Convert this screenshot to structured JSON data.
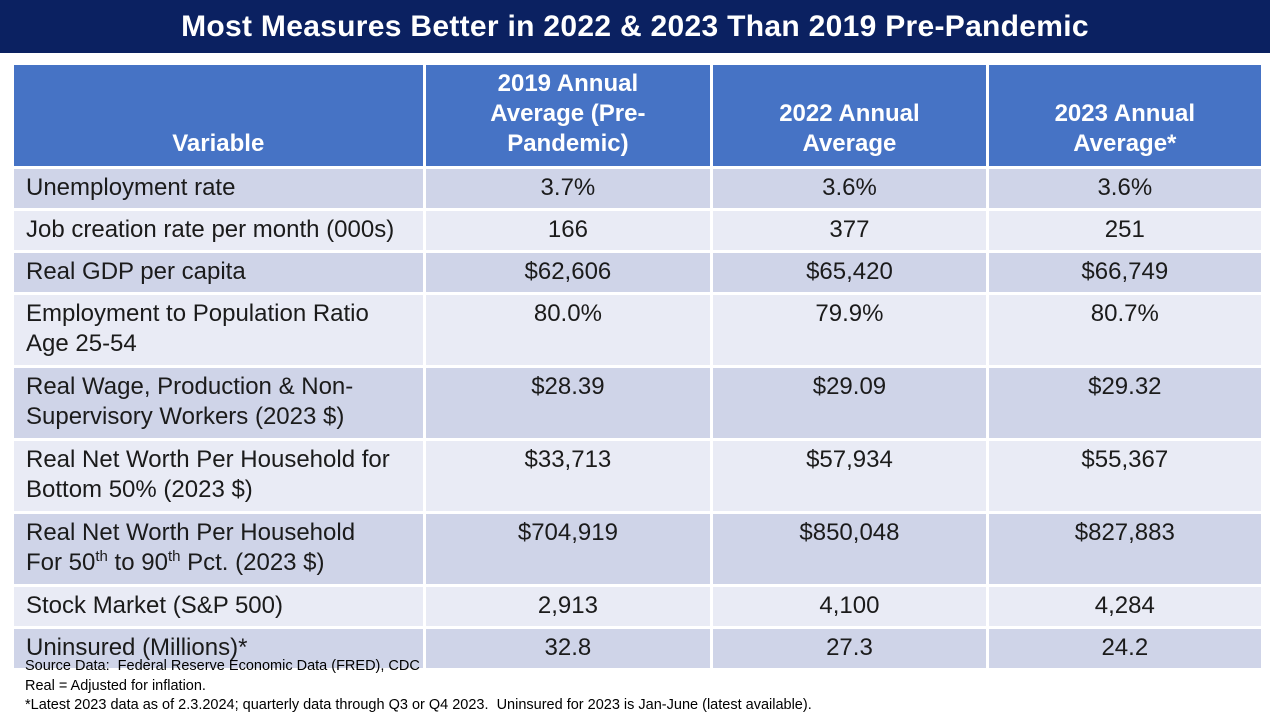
{
  "title": "Most Measures Better in 2022 & 2023 Than 2019 Pre-Pandemic",
  "table": {
    "headers": [
      {
        "lines": [
          "Variable"
        ]
      },
      {
        "lines": [
          "2019 Annual",
          "Average (Pre-Pandemic)"
        ]
      },
      {
        "lines": [
          "2022 Annual",
          "Average"
        ]
      },
      {
        "lines": [
          "2023 Annual",
          "Average*"
        ]
      }
    ],
    "rows": [
      {
        "variable_lines": [
          "Unemployment rate"
        ],
        "values": [
          "3.7%",
          "3.6%",
          "3.6%"
        ]
      },
      {
        "variable_lines": [
          "Job creation rate per month (000s)"
        ],
        "values": [
          "166",
          "377",
          "251"
        ]
      },
      {
        "variable_lines": [
          "Real GDP per capita"
        ],
        "values": [
          "$62,606",
          "$65,420",
          "$66,749"
        ]
      },
      {
        "variable_lines": [
          "Employment to Population Ratio",
          "Age 25-54"
        ],
        "values": [
          "80.0%",
          "79.9%",
          "80.7%"
        ]
      },
      {
        "variable_lines": [
          "Real Wage, Production & Non-",
          "Supervisory Workers (2023 $)"
        ],
        "values": [
          "$28.39",
          "$29.09",
          "$29.32"
        ]
      },
      {
        "variable_lines": [
          "Real Net Worth Per Household for",
          "Bottom 50% (2023 $)"
        ],
        "values": [
          "$33,713",
          "$57,934",
          "$55,367"
        ]
      },
      {
        "variable_lines": [
          "Real Net Worth Per Household",
          "For 50^{th} to 90^{th} Pct. (2023 $)"
        ],
        "values": [
          "$704,919",
          "$850,048",
          "$827,883"
        ]
      },
      {
        "variable_lines": [
          "Stock Market (S&P 500)"
        ],
        "values": [
          "2,913",
          "4,100",
          "4,284"
        ]
      },
      {
        "variable_lines": [
          "Uninsured (Millions)*"
        ],
        "values": [
          "32.8",
          "27.3",
          "24.2"
        ]
      }
    ]
  },
  "footnotes": [
    "Source Data:  Federal Reserve Economic Data (FRED), CDC",
    "Real = Adjusted for inflation.",
    "*Latest 2023 data as of 2.3.2024; quarterly data through Q3 or Q4 2023.  Uninsured for 2023 is Jan-June (latest available)."
  ],
  "colors": {
    "title_bar": "#0b2161",
    "header_blue": "#4673C5",
    "row_dark": "#CFD4E8",
    "row_light": "#E9EBF5",
    "grid_white": "#FFFFFF",
    "text": "#1B1B1B"
  }
}
